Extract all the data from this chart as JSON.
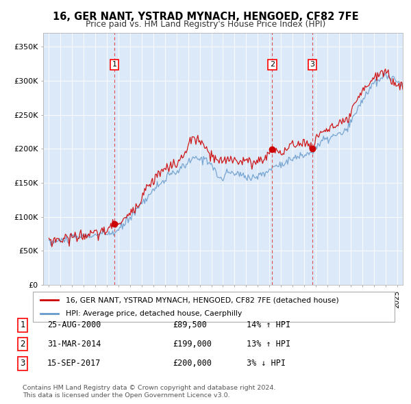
{
  "title": "16, GER NANT, YSTRAD MYNACH, HENGOED, CF82 7FE",
  "subtitle": "Price paid vs. HM Land Registry's House Price Index (HPI)",
  "background_color": "#dce9f8",
  "plot_bg_color": "#dce9f8",
  "red_line_color": "#cc0000",
  "blue_line_color": "#6699cc",
  "sale_marker_color": "#cc0000",
  "dashed_line_color": "#dd3333",
  "sales": [
    {
      "num": 1,
      "date_x": 2000.65,
      "price": 89500,
      "label": "25-AUG-2000",
      "price_str": "£89,500",
      "hpi_str": "14% ↑ HPI"
    },
    {
      "num": 2,
      "date_x": 2014.25,
      "price": 199000,
      "label": "31-MAR-2014",
      "price_str": "£199,000",
      "hpi_str": "13% ↑ HPI"
    },
    {
      "num": 3,
      "date_x": 2017.71,
      "price": 200000,
      "label": "15-SEP-2017",
      "price_str": "£200,000",
      "hpi_str": "3% ↓ HPI"
    }
  ],
  "ylim": [
    0,
    370000
  ],
  "xlim": [
    1994.5,
    2025.5
  ],
  "yticks": [
    0,
    50000,
    100000,
    150000,
    200000,
    250000,
    300000,
    350000
  ],
  "ytick_labels": [
    "£0",
    "£50K",
    "£100K",
    "£150K",
    "£200K",
    "£250K",
    "£300K",
    "£350K"
  ],
  "xticks": [
    1995,
    1996,
    1997,
    1998,
    1999,
    2000,
    2001,
    2002,
    2003,
    2004,
    2005,
    2006,
    2007,
    2008,
    2009,
    2010,
    2011,
    2012,
    2013,
    2014,
    2015,
    2016,
    2017,
    2018,
    2019,
    2020,
    2021,
    2022,
    2023,
    2024,
    2025
  ],
  "legend_line1": "16, GER NANT, YSTRAD MYNACH, HENGOED, CF82 7FE (detached house)",
  "legend_line2": "HPI: Average price, detached house, Caerphilly",
  "footer1": "Contains HM Land Registry data © Crown copyright and database right 2024.",
  "footer2": "This data is licensed under the Open Government Licence v3.0."
}
